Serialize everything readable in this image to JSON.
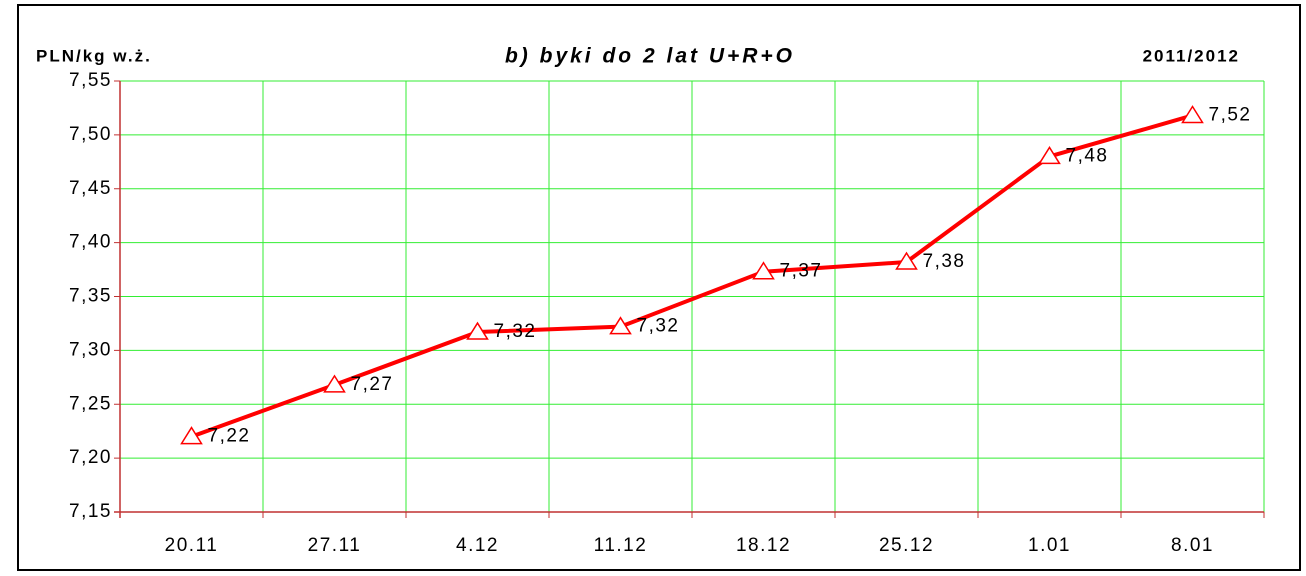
{
  "chart_data": {
    "type": "line",
    "title": "b) byki do 2 lat U+R+O",
    "y_label": "PLN/kg w.ż.",
    "annotation": "2011/2012",
    "categories": [
      "20.11",
      "27.11",
      "4.12",
      "11.12",
      "18.12",
      "25.12",
      "1.01",
      "8.01"
    ],
    "values": [
      7.22,
      7.268,
      7.317,
      7.322,
      7.373,
      7.382,
      7.48,
      7.518
    ],
    "value_labels": [
      "7,22",
      "7,27",
      "7,32",
      "7,32",
      "7,37",
      "7,38",
      "7,48",
      "7,52"
    ],
    "color": "#ff0000",
    "ylim": [
      7.15,
      7.55
    ],
    "yticks": [
      {
        "value": 7.15,
        "label": "7,15"
      },
      {
        "value": 7.2,
        "label": "7,20"
      },
      {
        "value": 7.25,
        "label": "7,25"
      },
      {
        "value": 7.3,
        "label": "7,30"
      },
      {
        "value": 7.35,
        "label": "7,35"
      },
      {
        "value": 7.4,
        "label": "7,40"
      },
      {
        "value": 7.45,
        "label": "7,45"
      },
      {
        "value": 7.5,
        "label": "7,50"
      },
      {
        "value": 7.55,
        "label": "7,55"
      }
    ],
    "grid": true,
    "grid_color": "#33ee33"
  }
}
